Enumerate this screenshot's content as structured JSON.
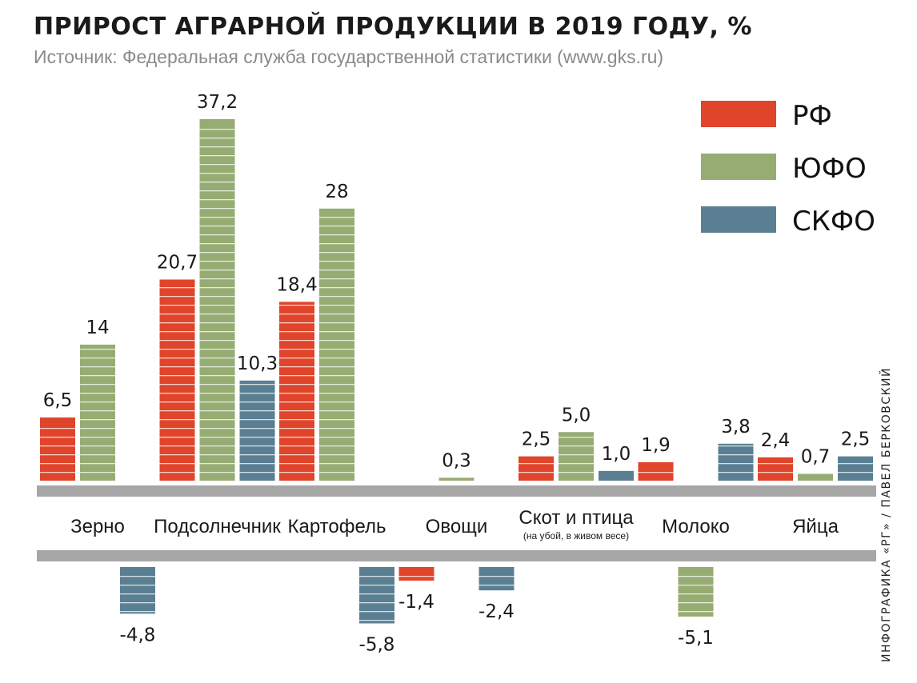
{
  "title": "ПРИРОСТ АГРАРНОЙ ПРОДУКЦИИ В 2019 ГОДУ, %",
  "subtitle": "Источник: Федеральная служба государственной статистики (www.gks.ru)",
  "credit": "ИНФОГРАФИКА «РГ» / ПАВЕЛ БЕРКОВСКИЙ",
  "colors": {
    "rf": "#e0442b",
    "yufo": "#96ac73",
    "skfo": "#5a7f92",
    "axis": "#a6a6a6"
  },
  "chart_data": {
    "type": "bar",
    "title": "ПРИРОСТ АГРАРНОЙ ПРОДУКЦИИ В 2019 ГОДУ, %",
    "categories": [
      "Зерно",
      "Подсолнечник",
      "Картофель",
      "Овощи",
      "Скот и птица",
      "Молоко",
      "Яйца"
    ],
    "category_notes": [
      "",
      "",
      "",
      "",
      "(на убой, в живом весе)",
      "",
      ""
    ],
    "series": [
      {
        "name": "РФ",
        "values": [
          6.5,
          20.7,
          18.4,
          -1.4,
          2.5,
          1.9,
          2.4
        ],
        "labels": [
          "6,5",
          "20,7",
          "18,4",
          "-1,4",
          "2,5",
          "1,9",
          "2,4"
        ]
      },
      {
        "name": "ЮФО",
        "values": [
          14,
          37.2,
          28,
          0.3,
          5.0,
          -5.1,
          0.7
        ],
        "labels": [
          "14",
          "37,2",
          "28",
          "0,3",
          "5,0",
          "-5,1",
          "0,7"
        ]
      },
      {
        "name": "СКФО",
        "values": [
          -4.8,
          10.3,
          -5.8,
          -2.4,
          1.0,
          3.8,
          2.5
        ],
        "labels": [
          "-4,8",
          "10,3",
          "-5,8",
          "-2,4",
          "1,0",
          "3,8",
          "2,5"
        ]
      }
    ],
    "legend_position": "top-right",
    "grid": false
  }
}
